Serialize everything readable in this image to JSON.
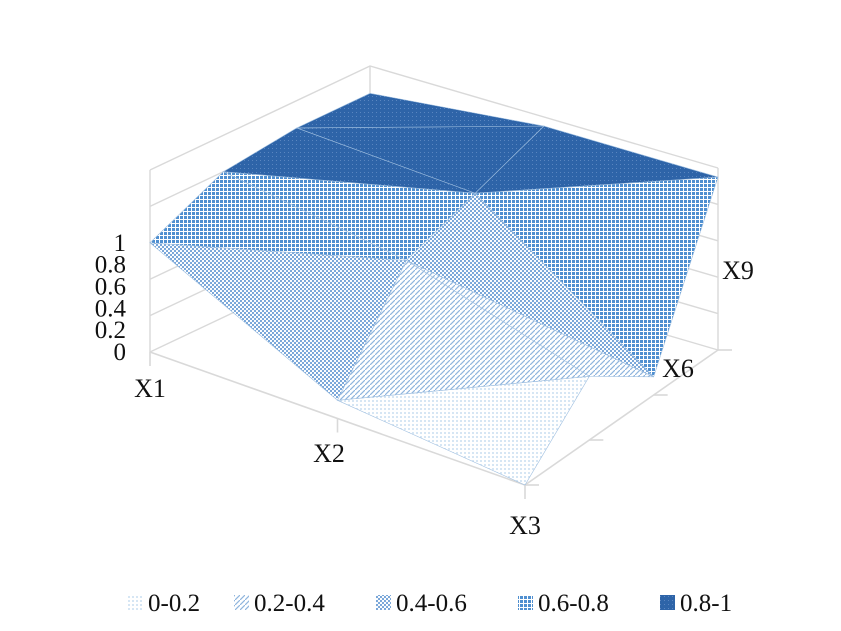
{
  "chart_data": {
    "type": "surface-3d",
    "title": "",
    "z_ticks": [
      "0",
      "0.2",
      "0.4",
      "0.6",
      "0.8",
      "1"
    ],
    "zlim": [
      0,
      1
    ],
    "front_axis_labels": [
      "X1",
      "X2",
      "X3"
    ],
    "depth_axis_labels": [
      "X6",
      "X9"
    ],
    "rows": [
      {
        "x": "X1",
        "values": [
          0.6,
          0.8,
          0.85,
          0.85
        ]
      },
      {
        "x": "X2",
        "values": [
          0.1,
          0.65,
          0.8,
          0.95
        ]
      },
      {
        "x": "X3",
        "values": [
          0.0,
          0.35,
          0.1,
          0.95
        ]
      }
    ],
    "legend_position": "bottom",
    "legend": [
      {
        "label": "0-0.2",
        "color": "#d6e6f4"
      },
      {
        "label": "0.2-0.4",
        "color": "#8fb5de"
      },
      {
        "label": "0.4-0.6",
        "color": "#6fa0d6"
      },
      {
        "label": "0.6-0.8",
        "color": "#4f8fd0"
      },
      {
        "label": "0.8-1",
        "color": "#2e64a8"
      }
    ],
    "gridlines": true
  }
}
